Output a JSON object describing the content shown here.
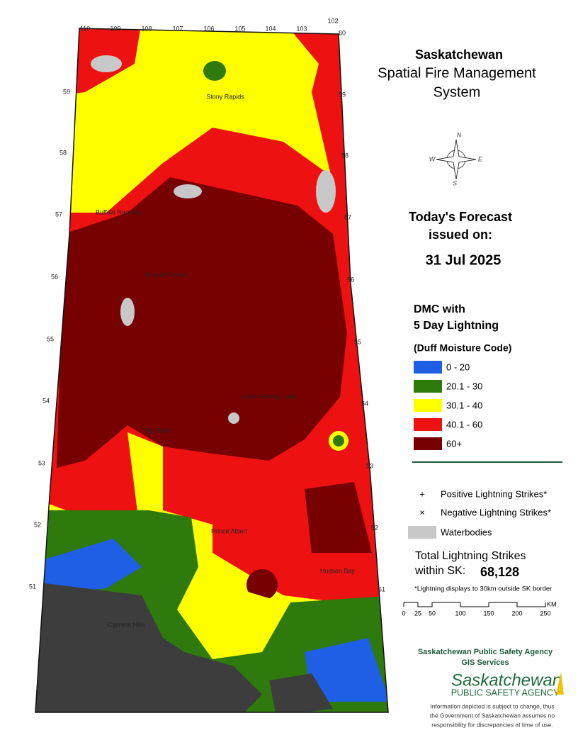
{
  "header": {
    "title": "Saskatchewan",
    "subtitle_1": "Spatial Fire Management",
    "subtitle_2": "System"
  },
  "forecast": {
    "line_1": "Today's Forecast",
    "line_2": "issued on:",
    "date": "31 Jul 2025"
  },
  "legend": {
    "title_1": "DMC with",
    "title_2": "5 Day Lightning",
    "subtitle": "(Duff Moisture Code)",
    "classes": [
      {
        "label": "0 - 20",
        "color": "#1f5fe6"
      },
      {
        "label": "20.1 - 30",
        "color": "#2e7a0c"
      },
      {
        "label": "30.1 - 40",
        "color": "#ffff00"
      },
      {
        "label": "40.1 - 60",
        "color": "#ee1111"
      },
      {
        "label": "60+",
        "color": "#770000"
      }
    ]
  },
  "symbols": [
    {
      "glyph": "+",
      "label": "Positive Lightning Strikes*"
    },
    {
      "glyph": "×",
      "label": "Negative Lightning Strikes*"
    },
    {
      "glyph": "",
      "label": "Waterbodies"
    }
  ],
  "totals": {
    "label_1": "Total Lightning Strikes",
    "label_2": "within SK:",
    "value": "68,128",
    "note": "*Lightning displays to 30km outside SK border"
  },
  "scale": {
    "ticks": [
      "0",
      "25",
      "50",
      "100",
      "150",
      "200",
      "250"
    ],
    "unit": "KM"
  },
  "agency": {
    "name": "Saskatchewan Public Safety Agency",
    "unit": "GIS  Services",
    "logo_1": "Saskatchewan",
    "logo_2": "PUBLIC SAFETY AGENCY"
  },
  "disclaimer": [
    "Information depicted is subject to change, thus",
    "the Government of Saskatchewan assumes no",
    "responsibility for discrepancies at time of use."
  ],
  "compass": [
    "N",
    "E",
    "S",
    "W"
  ],
  "graticule": {
    "top": [
      "110",
      "109",
      "108",
      "107",
      "106",
      "105",
      "104",
      "103",
      "102"
    ],
    "top_lat": "60",
    "left": [
      "59",
      "58",
      "57",
      "56",
      "55",
      "54",
      "53",
      "52",
      "51"
    ],
    "right": [
      "59",
      "58",
      "57",
      "56",
      "55",
      "54",
      "53",
      "52",
      "51"
    ]
  },
  "places": [
    "Stony Rapids",
    "Buffalo Narrows",
    "Ile-a-la-Crosse",
    "Lower Fishing Lake",
    "Big River",
    "Prince Albert",
    "Hudson Bay",
    "Cypress Hills"
  ]
}
